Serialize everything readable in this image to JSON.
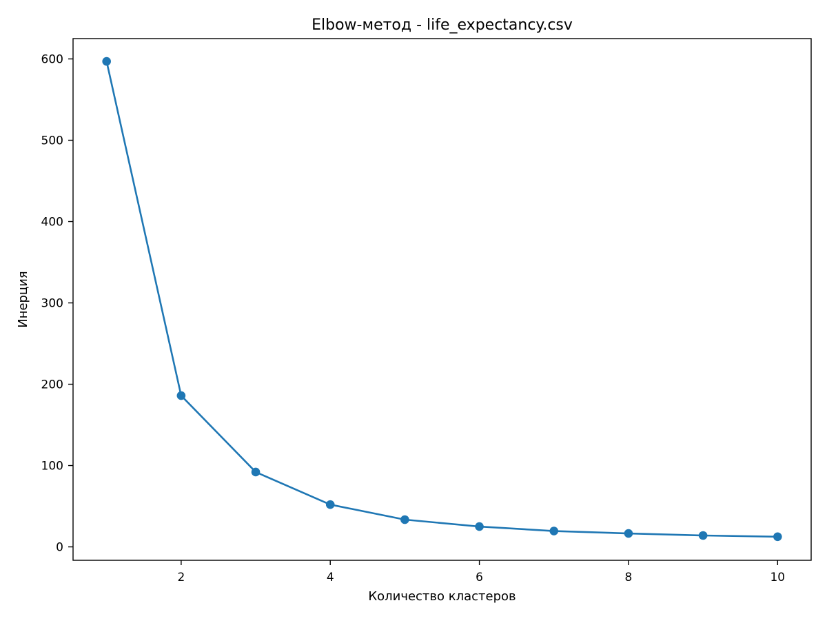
{
  "chart_data": {
    "type": "line",
    "title": "Elbow-метод - life_expectancy.csv",
    "xlabel": "Количество кластеров",
    "ylabel": "Инерция",
    "x": [
      1,
      2,
      3,
      4,
      5,
      6,
      7,
      8,
      9,
      10
    ],
    "series": [
      {
        "values": [
          597,
          186,
          92,
          52,
          33.5,
          25,
          19.5,
          16.5,
          14,
          12.5
        ],
        "color": "#1f77b4",
        "marker": "circle"
      }
    ],
    "xlim": [
      0.55,
      10.45
    ],
    "ylim": [
      -16.5,
      625
    ],
    "xticks": [
      2,
      4,
      6,
      8,
      10
    ],
    "xtick_labels": [
      "2",
      "4",
      "6",
      "8",
      "10"
    ],
    "yticks": [
      0,
      100,
      200,
      300,
      400,
      500,
      600
    ],
    "ytick_labels": [
      "0",
      "100",
      "200",
      "300",
      "400",
      "500",
      "600"
    ],
    "grid": false,
    "legend": "none"
  }
}
